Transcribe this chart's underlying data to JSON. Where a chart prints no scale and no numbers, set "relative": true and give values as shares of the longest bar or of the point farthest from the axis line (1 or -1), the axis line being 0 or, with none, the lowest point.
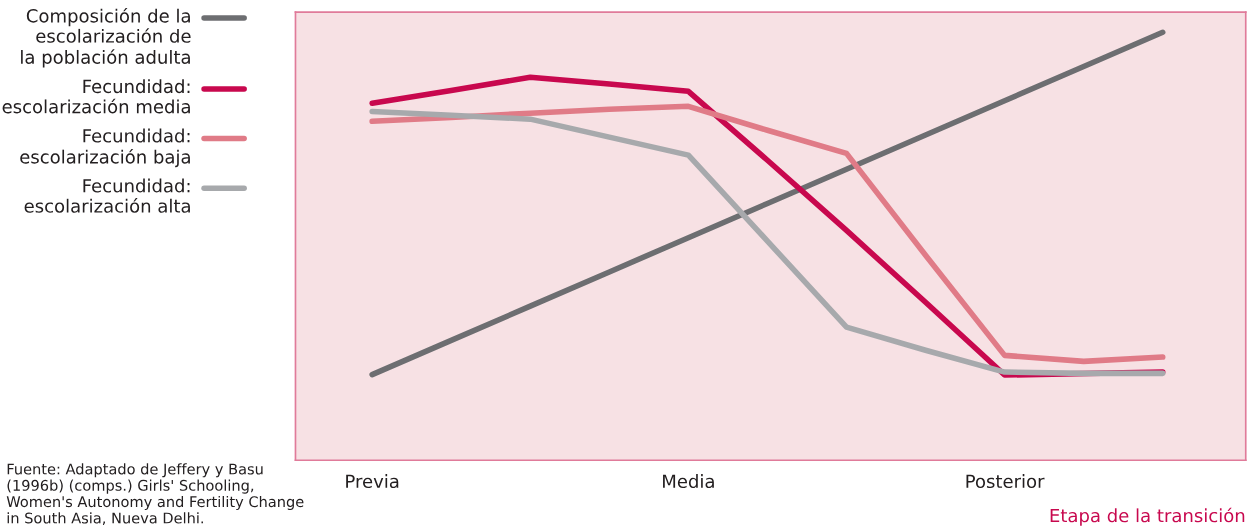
{
  "chart_data": {
    "type": "line",
    "relative": true,
    "xlabel": "Etapa de la transición",
    "categories": [
      "Previa",
      null,
      null,
      null,
      "Media",
      null,
      null,
      null,
      "Posterior",
      null,
      null
    ],
    "series": [
      {
        "name": "Composición de la\nescolarización de\nla población adulta",
        "color": "#6d6e71",
        "values": [
          0.2,
          0.28,
          0.36,
          0.44,
          0.52,
          0.6,
          0.68,
          0.76,
          0.84,
          0.92,
          1.0
        ]
      },
      {
        "name": "Fecundidad:\nescolarización media",
        "color": "#c8084e",
        "values": [
          0.834,
          0.864,
          0.895,
          0.879,
          0.862,
          0.701,
          0.537,
          0.369,
          0.199,
          null,
          0.206
        ]
      },
      {
        "name": "Fecundidad:\nescolarización baja",
        "color": "#e07b87",
        "values": [
          0.792,
          0.801,
          0.811,
          0.82,
          0.827,
          0.771,
          0.717,
          0.479,
          0.245,
          0.231,
          0.241
        ]
      },
      {
        "name": "Fecundidad:\nescolarización alta",
        "color": "#a7a9ac",
        "values": [
          0.815,
          0.806,
          0.797,
          0.755,
          0.713,
          0.512,
          0.311,
          0.257,
          0.206,
          0.203,
          0.203
        ]
      }
    ],
    "legend": "left",
    "grid": false,
    "marker": "none",
    "line_style": "solid",
    "annotations": [
      "Fuente: Adaptado de Jeffery y Basu (1996b) (comps.) Girls' Schooling, Women's Autonomy and Fertility Change in South Asia, Nueva Delhi."
    ]
  }
}
